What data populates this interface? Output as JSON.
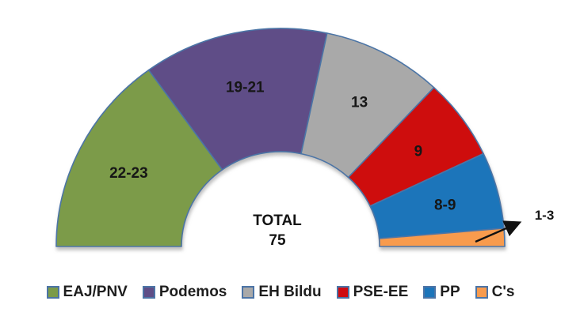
{
  "chart_data": {
    "type": "pie",
    "variant": "semicircle-donut",
    "total_seats": 75,
    "center_label": {
      "line1": "TOTAL",
      "line2": "75"
    },
    "legend_position": "bottom",
    "border_color": "#4C74A6",
    "label_color": "#161616",
    "parties": [
      {
        "name": "EAJ/PNV",
        "seats_label": "22-23",
        "value": 22.5,
        "color": "#7B9B49"
      },
      {
        "name": "Podemos",
        "seats_label": "19-21",
        "value": 20,
        "color": "#5F4E87"
      },
      {
        "name": "EH Bildu",
        "seats_label": "13",
        "value": 13,
        "color": "#A9A9A9"
      },
      {
        "name": "PSE-EE",
        "seats_label": "9",
        "value": 9,
        "color": "#CE0B11"
      },
      {
        "name": "PP",
        "seats_label": "8-9",
        "value": 8.5,
        "color": "#1C75BA"
      },
      {
        "name": "C's",
        "seats_label": "1-3",
        "value": 2,
        "color": "#F89B4E",
        "label_outside": true
      }
    ]
  }
}
